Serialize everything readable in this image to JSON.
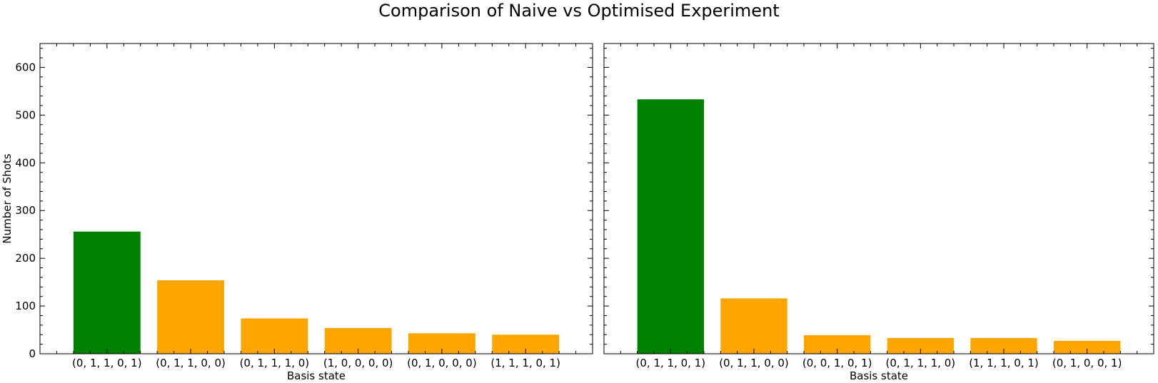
{
  "figure": {
    "title": "Comparison of Naive vs Optimised Experiment"
  },
  "colors": {
    "highlight": "#008000",
    "other": "#ffa500",
    "axis": "#000000"
  },
  "chart_data": [
    {
      "type": "bar",
      "title": "",
      "xlabel": "Basis state",
      "ylabel": "Number of Shots",
      "ylim": [
        0,
        650
      ],
      "yticks": [
        0,
        100,
        200,
        300,
        400,
        500,
        600
      ],
      "show_ytick_labels": true,
      "grid": false,
      "categories": [
        "(0, 1, 1, 0, 1)",
        "(0, 1, 1, 0, 0)",
        "(0, 1, 1, 1, 0)",
        "(1, 0, 0, 0, 0)",
        "(0, 1, 0, 0, 0)",
        "(1, 1, 1, 0, 1)"
      ],
      "values": [
        256,
        154,
        74,
        54,
        43,
        40
      ],
      "bar_colors": [
        "#008000",
        "#ffa500",
        "#ffa500",
        "#ffa500",
        "#ffa500",
        "#ffa500"
      ]
    },
    {
      "type": "bar",
      "title": "",
      "xlabel": "Basis state",
      "ylabel": "",
      "ylim": [
        0,
        650
      ],
      "yticks": [
        0,
        100,
        200,
        300,
        400,
        500,
        600
      ],
      "show_ytick_labels": false,
      "grid": false,
      "categories": [
        "(0, 1, 1, 0, 1)",
        "(0, 1, 1, 0, 0)",
        "(0, 0, 1, 0, 1)",
        "(0, 1, 1, 1, 0)",
        "(1, 1, 1, 0, 1)",
        "(0, 1, 0, 0, 1)"
      ],
      "values": [
        533,
        116,
        39,
        33,
        33,
        27
      ],
      "bar_colors": [
        "#008000",
        "#ffa500",
        "#ffa500",
        "#ffa500",
        "#ffa500",
        "#ffa500"
      ]
    }
  ]
}
